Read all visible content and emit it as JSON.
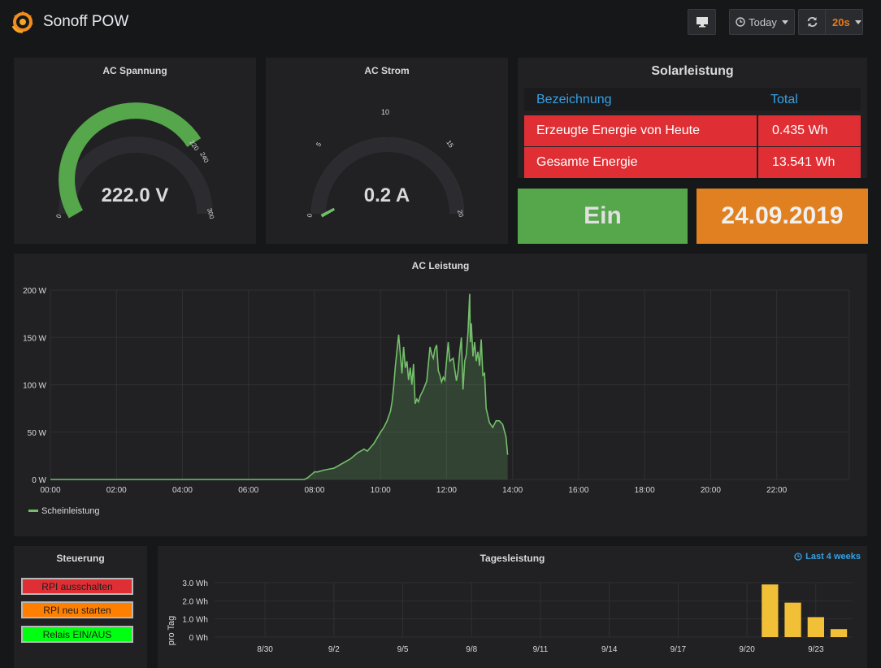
{
  "header": {
    "title": "Sonoff POW",
    "time_range_label": "Today",
    "refresh_label": "20s"
  },
  "gauges": [
    {
      "title": "AC Spannung",
      "value_text": "222.0 V",
      "value": 222.0,
      "min": 0,
      "max": 300,
      "tick_labels": [
        "0",
        "220",
        "240",
        "300"
      ]
    },
    {
      "title": "AC Strom",
      "value_text": "0.2 A",
      "value": 0.2,
      "min": 0,
      "max": 20,
      "tick_labels": [
        "0",
        "5",
        "10",
        "15",
        "20"
      ]
    }
  ],
  "solar": {
    "title": "Solarleistung",
    "col_name": "Bezeichnung",
    "col_total": "Total",
    "rows": [
      {
        "name": "Erzeugte Energie von Heute",
        "total": "0.435 Wh"
      },
      {
        "name": "Gesamte Energie",
        "total": "13.541 Wh"
      }
    ]
  },
  "status": {
    "relay": "Ein",
    "date": "24.09.2019"
  },
  "colors": {
    "green": "#56a64b",
    "orange": "#e08020",
    "red": "#e02f34",
    "blue": "#33a2e5",
    "line": "#73bf69",
    "bar": "#f2c037"
  },
  "control": {
    "title": "Steuerung",
    "buttons": [
      {
        "label": "RPI ausschalten",
        "color": "#e02f34"
      },
      {
        "label": "RPI neu starten",
        "color": "#ff7f00"
      },
      {
        "label": "Relais EIN/AUS",
        "color": "#00ff10"
      }
    ]
  },
  "daily": {
    "title": "Tagesleistung",
    "time_override": "Last 4 weeks"
  },
  "chart_data": [
    {
      "type": "area",
      "title": "AC Leistung",
      "ylabel": "",
      "xlabel": "",
      "x_ticks": [
        "00:00",
        "02:00",
        "04:00",
        "06:00",
        "08:00",
        "10:00",
        "12:00",
        "14:00",
        "16:00",
        "18:00",
        "20:00",
        "22:00"
      ],
      "y_ticks": [
        "0 W",
        "50 W",
        "100 W",
        "150 W",
        "200 W"
      ],
      "xlim_hours": [
        0,
        24.2
      ],
      "ylim": [
        0,
        200
      ],
      "legend_position": "bottom-left",
      "grid": true,
      "series": [
        {
          "name": "Scheinleistung",
          "x_hours": [
            0,
            7.7,
            7.8,
            7.9,
            8.0,
            8.1,
            8.3,
            8.6,
            8.9,
            9.1,
            9.3,
            9.5,
            9.6,
            9.8,
            10.0,
            10.1,
            10.2,
            10.3,
            10.35,
            10.4,
            10.45,
            10.55,
            10.65,
            10.7,
            10.75,
            10.8,
            10.85,
            10.9,
            10.95,
            11.0,
            11.05,
            11.1,
            11.15,
            11.2,
            11.3,
            11.4,
            11.5,
            11.55,
            11.6,
            11.65,
            11.7,
            11.75,
            11.8,
            11.85,
            11.9,
            11.95,
            12.0,
            12.05,
            12.1,
            12.2,
            12.3,
            12.35,
            12.4,
            12.45,
            12.5,
            12.55,
            12.6,
            12.65,
            12.7,
            12.72,
            12.75,
            12.8,
            12.85,
            12.9,
            12.95,
            13.0,
            13.05,
            13.1,
            13.15,
            13.2,
            13.3,
            13.4,
            13.5,
            13.6,
            13.7,
            13.8,
            13.85
          ],
          "y": [
            0,
            0,
            2,
            5,
            8,
            8,
            10,
            12,
            18,
            22,
            28,
            32,
            30,
            38,
            50,
            55,
            62,
            72,
            82,
            98,
            120,
            153,
            112,
            140,
            118,
            125,
            105,
            118,
            100,
            122,
            80,
            85,
            82,
            88,
            95,
            104,
            140,
            132,
            128,
            138,
            142,
            115,
            110,
            103,
            108,
            105,
            125,
            145,
            125,
            128,
            104,
            115,
            135,
            150,
            95,
            125,
            132,
            155,
            196,
            145,
            165,
            130,
            145,
            125,
            135,
            120,
            148,
            110,
            112,
            75,
            60,
            55,
            62,
            62,
            58,
            45,
            26
          ]
        }
      ]
    },
    {
      "type": "bar",
      "title": "Tagesleistung",
      "ylabel": "pro Tag",
      "xlabel": "",
      "x_ticks": [
        "8/30",
        "9/2",
        "9/5",
        "9/8",
        "9/11",
        "9/14",
        "9/17",
        "9/20",
        "9/23"
      ],
      "y_ticks": [
        "0 Wh",
        "1.0 Wh",
        "2.0 Wh",
        "3.0 Wh"
      ],
      "ylim": [
        0,
        3.0
      ],
      "grid": true,
      "categories": [
        "9/21",
        "9/22",
        "9/23",
        "9/24"
      ],
      "values": [
        2.9,
        1.9,
        1.1,
        0.44
      ]
    }
  ]
}
